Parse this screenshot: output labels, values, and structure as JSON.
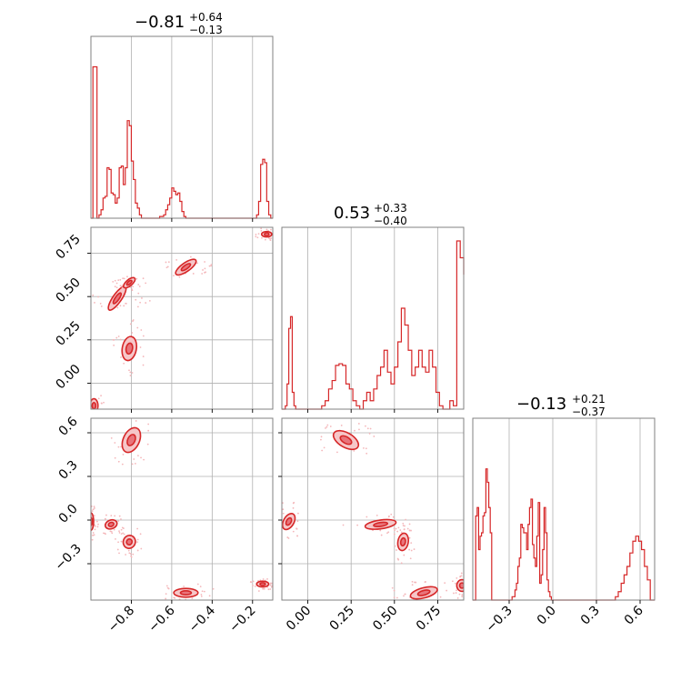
{
  "chart_data": {
    "type": "corner",
    "color": "#d62728",
    "grid": true,
    "parameters": [
      {
        "range": [
          -1.0,
          -0.1
        ],
        "ticks": [
          -0.8,
          -0.6,
          -0.4,
          -0.2
        ],
        "tick_labels": [
          "−0.8",
          "−0.6",
          "−0.4",
          "−0.2"
        ],
        "title": {
          "main": "−0.81",
          "plus": "+0.64",
          "minus": "−0.13"
        },
        "hist_x": [
          -1.0,
          -0.99,
          -0.97,
          -0.96,
          -0.95,
          -0.94,
          -0.93,
          -0.92,
          -0.91,
          -0.9,
          -0.89,
          -0.88,
          -0.87,
          -0.86,
          -0.85,
          -0.84,
          -0.83,
          -0.82,
          -0.81,
          -0.8,
          -0.79,
          -0.78,
          -0.77,
          -0.76,
          -0.75,
          -0.74,
          -0.73,
          -0.72,
          -0.68,
          -0.66,
          -0.64,
          -0.63,
          -0.62,
          -0.61,
          -0.6,
          -0.59,
          -0.58,
          -0.57,
          -0.56,
          -0.55,
          -0.54,
          -0.53,
          -0.52,
          -0.51,
          -0.5,
          -0.49,
          -0.48,
          -0.47,
          -0.46,
          -0.45,
          -0.44,
          -0.43,
          -0.2,
          -0.18,
          -0.17,
          -0.16,
          -0.15,
          -0.14,
          -0.13,
          -0.12,
          -0.11,
          -0.1
        ],
        "hist_y": [
          0.0,
          0.9,
          0.0,
          0.02,
          0.05,
          0.12,
          0.13,
          0.3,
          0.29,
          0.15,
          0.14,
          0.09,
          0.12,
          0.3,
          0.31,
          0.2,
          0.3,
          0.58,
          0.55,
          0.34,
          0.23,
          0.09,
          0.06,
          0.02,
          0.0,
          0.0,
          0.0,
          0.0,
          0.0,
          0.01,
          0.02,
          0.05,
          0.08,
          0.12,
          0.18,
          0.16,
          0.14,
          0.15,
          0.1,
          0.04,
          0.01,
          0.0,
          0.0,
          0.0,
          0.0,
          0.0,
          0.0,
          0.0,
          0.0,
          0.0,
          0.0,
          0.0,
          0.0,
          0.02,
          0.1,
          0.32,
          0.35,
          0.33,
          0.1,
          0.02,
          0.0,
          0.0
        ]
      },
      {
        "range": [
          -0.15,
          0.9
        ],
        "ticks": [
          0.0,
          0.25,
          0.5,
          0.75
        ],
        "tick_labels": [
          "0.00",
          "0.25",
          "0.50",
          "0.75"
        ],
        "title": {
          "main": "0.53",
          "plus": "+0.33",
          "minus": "−0.40"
        },
        "hist_x": [
          -0.15,
          -0.13,
          -0.12,
          -0.11,
          -0.1,
          -0.09,
          -0.08,
          -0.07,
          -0.06,
          -0.05,
          0.08,
          0.1,
          0.12,
          0.14,
          0.16,
          0.18,
          0.2,
          0.22,
          0.24,
          0.26,
          0.28,
          0.3,
          0.32,
          0.34,
          0.36,
          0.38,
          0.4,
          0.42,
          0.44,
          0.46,
          0.48,
          0.5,
          0.52,
          0.54,
          0.56,
          0.58,
          0.6,
          0.62,
          0.64,
          0.66,
          0.68,
          0.7,
          0.72,
          0.74,
          0.76,
          0.78,
          0.8,
          0.82,
          0.84,
          0.86,
          0.88,
          0.9
        ],
        "hist_y": [
          0.0,
          0.02,
          0.15,
          0.48,
          0.55,
          0.1,
          0.02,
          0.0,
          0.0,
          0.0,
          0.02,
          0.05,
          0.12,
          0.17,
          0.26,
          0.27,
          0.26,
          0.15,
          0.12,
          0.05,
          0.02,
          0.0,
          0.05,
          0.1,
          0.05,
          0.12,
          0.2,
          0.25,
          0.35,
          0.22,
          0.15,
          0.25,
          0.4,
          0.6,
          0.5,
          0.35,
          0.2,
          0.25,
          0.35,
          0.25,
          0.22,
          0.35,
          0.25,
          0.1,
          0.02,
          0.0,
          0.0,
          0.05,
          0.02,
          1.0,
          0.9,
          0.8
        ]
      },
      {
        "range": [
          -0.55,
          0.7
        ],
        "ticks": [
          -0.3,
          0.0,
          0.3,
          0.6
        ],
        "tick_labels": [
          "−0.3",
          "0.0",
          "0.3",
          "0.6"
        ],
        "title": {
          "main": "−0.13",
          "plus": "+0.21",
          "minus": "−0.37"
        },
        "hist_x": [
          -0.55,
          -0.53,
          -0.52,
          -0.51,
          -0.5,
          -0.49,
          -0.48,
          -0.47,
          -0.46,
          -0.45,
          -0.44,
          -0.43,
          -0.42,
          -0.3,
          -0.28,
          -0.26,
          -0.25,
          -0.24,
          -0.23,
          -0.22,
          -0.21,
          -0.2,
          -0.19,
          -0.18,
          -0.17,
          -0.16,
          -0.15,
          -0.14,
          -0.13,
          -0.12,
          -0.11,
          -0.1,
          -0.09,
          -0.08,
          -0.07,
          -0.06,
          -0.05,
          -0.04,
          -0.03,
          -0.02,
          -0.01,
          0.0,
          0.02,
          0.04,
          0.06,
          0.08,
          0.1,
          0.4,
          0.43,
          0.45,
          0.47,
          0.49,
          0.51,
          0.53,
          0.55,
          0.57,
          0.59,
          0.61,
          0.63,
          0.65,
          0.67,
          0.7
        ],
        "hist_y": [
          0.0,
          0.5,
          0.55,
          0.3,
          0.38,
          0.4,
          0.5,
          0.52,
          0.78,
          0.7,
          0.55,
          0.4,
          0.0,
          0.0,
          0.02,
          0.06,
          0.1,
          0.2,
          0.25,
          0.45,
          0.43,
          0.4,
          0.4,
          0.3,
          0.45,
          0.55,
          0.6,
          0.33,
          0.25,
          0.2,
          0.38,
          0.58,
          0.1,
          0.15,
          0.3,
          0.55,
          0.4,
          0.12,
          0.05,
          0.02,
          0.0,
          0.0,
          0.0,
          0.0,
          0.0,
          0.0,
          0.0,
          0.0,
          0.02,
          0.05,
          0.1,
          0.15,
          0.2,
          0.28,
          0.35,
          0.38,
          0.35,
          0.3,
          0.2,
          0.12,
          0.0,
          0.0
        ]
      }
    ],
    "blobs": {
      "p1_p0": [
        {
          "x": -0.985,
          "y": -0.13,
          "sx": 0.02,
          "sy": 0.04,
          "rot": 0
        },
        {
          "x": -0.87,
          "y": 0.49,
          "sx": 0.07,
          "sy": 0.025,
          "rot": 55
        },
        {
          "x": -0.81,
          "y": 0.58,
          "sx": 0.035,
          "sy": 0.018,
          "rot": 40
        },
        {
          "x": -0.81,
          "y": 0.2,
          "sx": 0.035,
          "sy": 0.07,
          "rot": -10
        },
        {
          "x": -0.53,
          "y": 0.67,
          "sx": 0.06,
          "sy": 0.025,
          "rot": 35
        },
        {
          "x": -0.13,
          "y": 0.86,
          "sx": 0.025,
          "sy": 0.015,
          "rot": 0
        }
      ],
      "p2_p0": [
        {
          "x": -1.0,
          "y": -0.01,
          "sx": 0.01,
          "sy": 0.06,
          "rot": 0
        },
        {
          "x": -0.9,
          "y": -0.03,
          "sx": 0.03,
          "sy": 0.03,
          "rot": 20
        },
        {
          "x": -0.81,
          "y": -0.15,
          "sx": 0.03,
          "sy": 0.045,
          "rot": -20
        },
        {
          "x": -0.8,
          "y": 0.55,
          "sx": 0.04,
          "sy": 0.09,
          "rot": -25
        },
        {
          "x": -0.53,
          "y": -0.5,
          "sx": 0.06,
          "sy": 0.03,
          "rot": 0
        },
        {
          "x": -0.15,
          "y": -0.44,
          "sx": 0.03,
          "sy": 0.02,
          "rot": 0
        }
      ],
      "p2_p1": [
        {
          "x": -0.11,
          "y": -0.01,
          "sx": 0.03,
          "sy": 0.06,
          "rot": -30
        },
        {
          "x": 0.22,
          "y": 0.55,
          "sx": 0.08,
          "sy": 0.05,
          "rot": -30
        },
        {
          "x": 0.42,
          "y": -0.03,
          "sx": 0.09,
          "sy": 0.03,
          "rot": 8
        },
        {
          "x": 0.55,
          "y": -0.15,
          "sx": 0.03,
          "sy": 0.06,
          "rot": -10
        },
        {
          "x": 0.67,
          "y": -0.5,
          "sx": 0.08,
          "sy": 0.035,
          "rot": 15
        },
        {
          "x": 0.89,
          "y": -0.45,
          "sx": 0.03,
          "sy": 0.04,
          "rot": 0
        }
      ]
    }
  }
}
